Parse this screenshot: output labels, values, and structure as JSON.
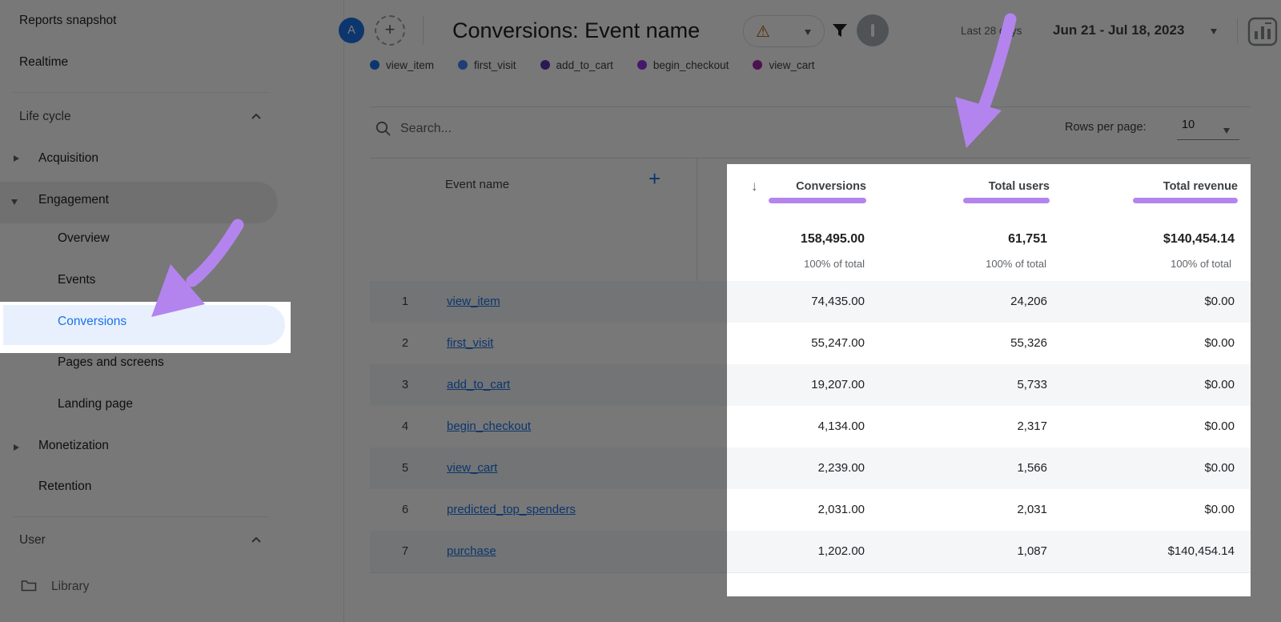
{
  "colors": {
    "accent": "#b484ee",
    "primary_blue": "#1a73e8",
    "warning": "#b06000"
  },
  "topbar": {
    "avatar_letter": "A",
    "add_comparison_label": "+",
    "title": "Conversions: Event name",
    "warning_icon": "warning-triangle",
    "date_preset": "Last 28 days",
    "date_range": "Jun 21 - Jul 18, 2023"
  },
  "sidebar": {
    "reports_snapshot": "Reports snapshot",
    "realtime": "Realtime",
    "life_cycle": "Life cycle",
    "acquisition": "Acquisition",
    "engagement": "Engagement",
    "overview": "Overview",
    "events": "Events",
    "conversions": "Conversions",
    "pages_and_screens": "Pages and screens",
    "landing_page": "Landing page",
    "monetization": "Monetization",
    "retention": "Retention",
    "user": "User",
    "library": "Library"
  },
  "legend": {
    "items": [
      {
        "label": "view_item",
        "color": "#1a73e8"
      },
      {
        "label": "first_visit",
        "color": "#4285f4"
      },
      {
        "label": "add_to_cart",
        "color": "#5e35b1"
      },
      {
        "label": "begin_checkout",
        "color": "#9334e6"
      },
      {
        "label": "view_cart",
        "color": "#a124ad"
      }
    ]
  },
  "toolbar": {
    "search_placeholder": "Search...",
    "rows_per_page_label": "Rows per page:",
    "rows_per_page_value": "10"
  },
  "table": {
    "dimension_header": "Event name",
    "add_column_label": "+",
    "sort_icon": "↓",
    "metric_headers": [
      "Conversions",
      "Total users",
      "Total revenue"
    ],
    "totals": {
      "conversions": "158,495.00",
      "conversions_share": "100% of total",
      "total_users": "61,751",
      "total_users_share": "100% of total",
      "total_revenue": "$140,454.14",
      "total_revenue_share": "100% of total"
    },
    "rows": [
      {
        "n": "1",
        "event": "view_item",
        "conversions": "74,435.00",
        "users": "24,206",
        "revenue": "$0.00"
      },
      {
        "n": "2",
        "event": "first_visit",
        "conversions": "55,247.00",
        "users": "55,326",
        "revenue": "$0.00"
      },
      {
        "n": "3",
        "event": "add_to_cart",
        "conversions": "19,207.00",
        "users": "5,733",
        "revenue": "$0.00"
      },
      {
        "n": "4",
        "event": "begin_checkout",
        "conversions": "4,134.00",
        "users": "2,317",
        "revenue": "$0.00"
      },
      {
        "n": "5",
        "event": "view_cart",
        "conversions": "2,239.00",
        "users": "1,566",
        "revenue": "$0.00"
      },
      {
        "n": "6",
        "event": "predicted_top_spenders",
        "conversions": "2,031.00",
        "users": "2,031",
        "revenue": "$0.00"
      },
      {
        "n": "7",
        "event": "purchase",
        "conversions": "1,202.00",
        "users": "1,087",
        "revenue": "$140,454.14"
      }
    ]
  }
}
